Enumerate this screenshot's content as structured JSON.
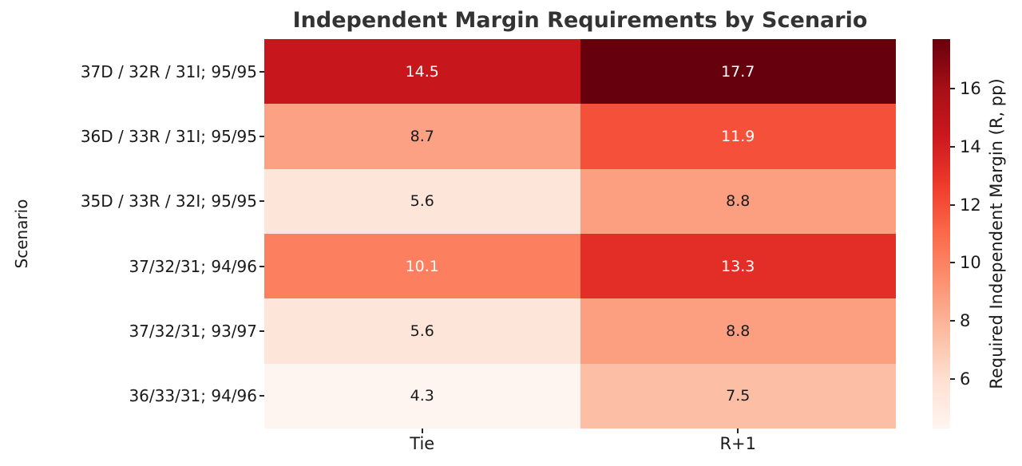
{
  "title": "Independent Margin Requirements by Scenario",
  "chart_data": {
    "type": "heatmap",
    "title": "Independent Margin Requirements by Scenario",
    "xlabel": "",
    "ylabel": "Scenario",
    "columns": [
      "Tie",
      "R+1"
    ],
    "rows": [
      "37D / 32R / 31I; 95/95",
      "36D / 33R / 31I; 95/95",
      "35D / 33R / 32I; 95/95",
      "37/32/31; 94/96",
      "37/32/31; 93/97",
      "36/33/31; 94/96"
    ],
    "values": [
      [
        14.5,
        17.7
      ],
      [
        8.7,
        11.9
      ],
      [
        5.6,
        8.8
      ],
      [
        10.1,
        13.3
      ],
      [
        5.6,
        8.8
      ],
      [
        4.3,
        7.5
      ]
    ],
    "cell_colors": [
      [
        "#c8171c",
        "#67000d"
      ],
      [
        "#fca184",
        "#f5513a"
      ],
      [
        "#fee5d9",
        "#fc9f81"
      ],
      [
        "#fc7f5f",
        "#e22e26"
      ],
      [
        "#fee5d9",
        "#fc9f81"
      ],
      [
        "#fff5f0",
        "#fcbea5"
      ]
    ],
    "text_colors": [
      [
        "#ffffff",
        "#ffffff"
      ],
      [
        "#1a1a1a",
        "#ffffff"
      ],
      [
        "#1a1a1a",
        "#1a1a1a"
      ],
      [
        "#ffffff",
        "#ffffff"
      ],
      [
        "#1a1a1a",
        "#1a1a1a"
      ],
      [
        "#1a1a1a",
        "#1a1a1a"
      ]
    ],
    "colormap": "Reds",
    "colormap_stops": [
      "#fff5f0",
      "#fee0d2",
      "#fcbba1",
      "#fc9272",
      "#fb6a4a",
      "#ef3b2c",
      "#cb181d",
      "#a50f15",
      "#67000d"
    ],
    "vmin": 4.3,
    "vmax": 17.7,
    "legend_position": "right",
    "grid": false,
    "colorbar": {
      "label": "Required Independent Margin (R, pp)",
      "ticks": [
        6,
        8,
        10,
        12,
        14,
        16
      ]
    }
  }
}
